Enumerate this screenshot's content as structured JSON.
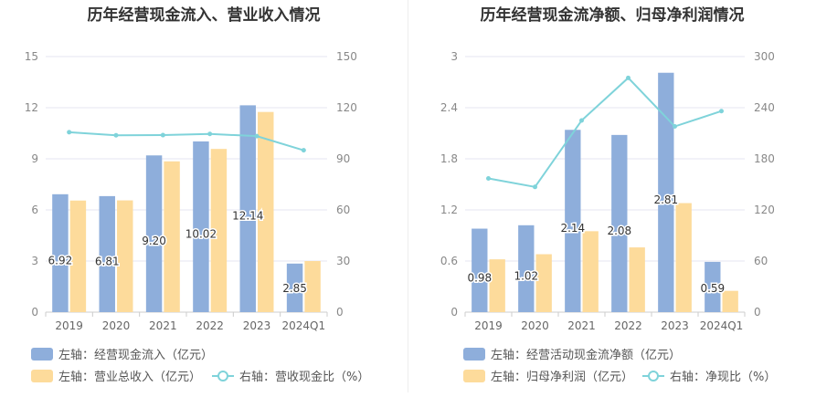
{
  "chart_data": [
    {
      "type": "bar",
      "title": "历年经营现金流入、营业收入情况",
      "categories": [
        "2019",
        "2020",
        "2021",
        "2022",
        "2023",
        "2024Q1"
      ],
      "series": [
        {
          "name": "左轴：经营现金流入（亿元）",
          "axis": "left",
          "type": "bar",
          "color": "#8eaedb",
          "values": [
            6.92,
            6.81,
            9.2,
            10.02,
            12.14,
            2.85
          ],
          "labels": [
            "6.92",
            "6.81",
            "9.20",
            "10.02",
            "12.14",
            "2.85"
          ]
        },
        {
          "name": "左轴：营业总收入（亿元）",
          "axis": "left",
          "type": "bar",
          "color": "#fddb9b",
          "values": [
            6.55,
            6.56,
            8.85,
            9.58,
            11.75,
            3.0
          ]
        },
        {
          "name": "右轴：营收现金比（%）",
          "axis": "right",
          "type": "line",
          "color": "#7fd3da",
          "values": [
            105.6,
            103.8,
            103.9,
            104.6,
            103.3,
            95.0
          ]
        }
      ],
      "left_axis": {
        "ticks": [
          "0",
          "3",
          "6",
          "9",
          "12",
          "15"
        ],
        "ylim": [
          0,
          15
        ]
      },
      "right_axis": {
        "ticks": [
          "0",
          "30",
          "60",
          "90",
          "120",
          "150"
        ],
        "ylim": [
          0,
          150
        ]
      },
      "grid": true,
      "legend_position": "bottom"
    },
    {
      "type": "bar",
      "title": "历年经营现金流净额、归母净利润情况",
      "categories": [
        "2019",
        "2020",
        "2021",
        "2022",
        "2023",
        "2024Q1"
      ],
      "series": [
        {
          "name": "左轴：经营活动现金流净额（亿元）",
          "axis": "left",
          "type": "bar",
          "color": "#8eaedb",
          "values": [
            0.98,
            1.02,
            2.14,
            2.08,
            2.81,
            0.59
          ],
          "labels": [
            "0.98",
            "1.02",
            "2.14",
            "2.08",
            "2.81",
            "0.59"
          ]
        },
        {
          "name": "左轴：归母净利润（亿元）",
          "axis": "left",
          "type": "bar",
          "color": "#fddb9b",
          "values": [
            0.62,
            0.68,
            0.95,
            0.76,
            1.28,
            0.25
          ]
        },
        {
          "name": "右轴：净现比（%）",
          "axis": "right",
          "type": "line",
          "color": "#7fd3da",
          "values": [
            157,
            147,
            225,
            275,
            218,
            236
          ]
        }
      ],
      "left_axis": {
        "ticks": [
          "0",
          "0.6",
          "1.2",
          "1.8",
          "2.4",
          "3"
        ],
        "ylim": [
          0,
          3
        ]
      },
      "right_axis": {
        "ticks": [
          "0",
          "60",
          "120",
          "180",
          "240",
          "300"
        ],
        "ylim": [
          0,
          300
        ]
      },
      "grid": true,
      "legend_position": "bottom"
    }
  ]
}
